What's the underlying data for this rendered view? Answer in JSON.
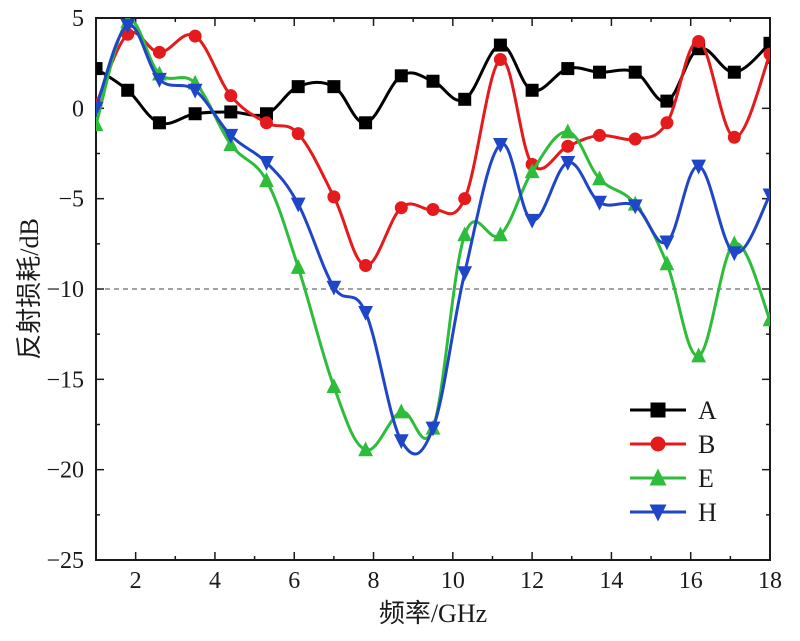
{
  "chart": {
    "type": "line",
    "xlabel": "频率/GHz",
    "ylabel": "反射损耗/dB",
    "label_fontsize": 26,
    "tick_fontsize": 24,
    "background_color": "#ffffff",
    "axis_color": "#1a1a1a",
    "ref_line_y": -10,
    "ref_line_style": "dashed",
    "xlim": [
      1,
      18
    ],
    "ylim": [
      -25,
      5
    ],
    "xticks": [
      2,
      4,
      6,
      8,
      10,
      12,
      14,
      16,
      18
    ],
    "yticks": [
      -25,
      -20,
      -15,
      -10,
      -5,
      0,
      5
    ],
    "tick_len_major": 8,
    "tick_len_minor": 4,
    "line_width": 3,
    "marker_size": 6,
    "legend": {
      "position": "lower-right",
      "items": [
        "A",
        "B",
        "E",
        "H"
      ]
    },
    "series": {
      "A": {
        "label": "A",
        "color": "#000000",
        "marker": "square",
        "x": [
          1.0,
          1.8,
          2.6,
          3.5,
          4.4,
          5.3,
          6.1,
          7.0,
          7.8,
          8.7,
          9.5,
          10.3,
          11.2,
          12.0,
          12.9,
          13.7,
          14.6,
          15.4,
          16.2,
          17.1,
          18.0
        ],
        "y": [
          2.2,
          1.0,
          -0.8,
          -0.3,
          -0.2,
          -0.3,
          1.2,
          1.2,
          -0.8,
          1.8,
          1.5,
          0.5,
          3.5,
          1.0,
          2.2,
          2.0,
          2.0,
          0.4,
          3.3,
          2.0,
          3.6
        ]
      },
      "B": {
        "label": "B",
        "color": "#e41a1c",
        "marker": "circle",
        "x": [
          1.0,
          1.8,
          2.6,
          3.5,
          4.4,
          5.3,
          6.1,
          7.0,
          7.8,
          8.7,
          9.5,
          10.3,
          11.2,
          12.0,
          12.9,
          13.7,
          14.6,
          15.4,
          16.2,
          17.1,
          18.0
        ],
        "y": [
          0.2,
          4.1,
          3.1,
          4.0,
          0.7,
          -0.8,
          -1.4,
          -4.9,
          -8.7,
          -5.5,
          -5.6,
          -5.0,
          2.7,
          -3.1,
          -2.1,
          -1.5,
          -1.7,
          -0.8,
          3.7,
          -1.6,
          3.0
        ]
      },
      "E": {
        "label": "E",
        "color": "#2dbd3a",
        "marker": "triangle-up",
        "x": [
          1.0,
          1.8,
          2.6,
          3.5,
          4.4,
          5.3,
          6.1,
          7.0,
          7.8,
          8.7,
          9.5,
          10.3,
          11.2,
          12.0,
          12.9,
          13.7,
          14.6,
          15.4,
          16.2,
          17.1,
          18.0
        ],
        "y": [
          -0.9,
          4.8,
          1.9,
          1.4,
          -2.0,
          -4.0,
          -8.8,
          -15.4,
          -18.9,
          -16.8,
          -17.7,
          -7.0,
          -7.0,
          -3.5,
          -1.3,
          -3.9,
          -5.3,
          -8.6,
          -13.7,
          -7.5,
          -11.7
        ]
      },
      "H": {
        "label": "H",
        "color": "#2046c8",
        "marker": "triangle-down",
        "x": [
          1.0,
          1.8,
          2.6,
          3.5,
          4.4,
          5.3,
          6.1,
          7.0,
          7.8,
          8.7,
          9.5,
          10.3,
          11.2,
          12.0,
          12.9,
          13.7,
          14.6,
          15.4,
          16.2,
          17.1,
          18.0
        ],
        "y": [
          0.0,
          4.6,
          1.6,
          1.0,
          -1.5,
          -3.0,
          -5.3,
          -9.9,
          -11.3,
          -18.4,
          -17.7,
          -9.1,
          -2.0,
          -6.2,
          -3.0,
          -5.2,
          -5.4,
          -7.4,
          -3.2,
          -8.0,
          -4.8
        ]
      }
    }
  }
}
